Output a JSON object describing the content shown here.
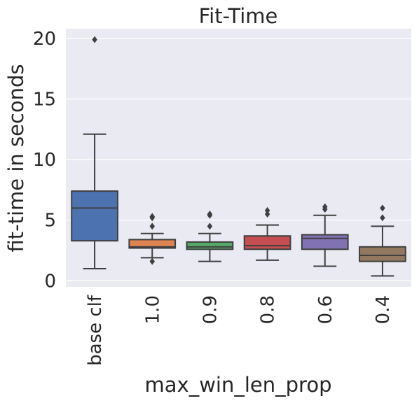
{
  "chart_data": {
    "type": "box",
    "title": "Fit-Time",
    "xlabel": "max_win_len_prop",
    "ylabel": "fit-time in seconds",
    "ylim": [
      -0.5,
      20.8
    ],
    "yticks": [
      0,
      5,
      10,
      15,
      20
    ],
    "ytick_labels": [
      "0",
      "5",
      "10",
      "15",
      "20"
    ],
    "grid": true,
    "categories": [
      "base clf",
      "1.0",
      "0.9",
      "0.8",
      "0.6",
      "0.4"
    ],
    "colors": [
      "#4c72b0",
      "#dd8452",
      "#55a868",
      "#c44e52",
      "#8172b3",
      "#937860"
    ],
    "series": [
      {
        "category": "base clf",
        "whisker_low": 1.0,
        "q1": 3.3,
        "median": 6.0,
        "q3": 7.4,
        "whisker_high": 12.1,
        "outliers": [
          19.9
        ]
      },
      {
        "category": "1.0",
        "whisker_low": 1.9,
        "q1": 2.7,
        "median": 2.8,
        "q3": 3.4,
        "whisker_high": 3.9,
        "outliers": [
          5.3,
          5.2,
          4.5,
          1.6
        ]
      },
      {
        "category": "0.9",
        "whisker_low": 1.6,
        "q1": 2.6,
        "median": 2.8,
        "q3": 3.2,
        "whisker_high": 3.9,
        "outliers": [
          5.5,
          5.4,
          4.5
        ]
      },
      {
        "category": "0.8",
        "whisker_low": 1.7,
        "q1": 2.6,
        "median": 2.9,
        "q3": 3.7,
        "whisker_high": 4.6,
        "outliers": [
          5.8,
          5.5
        ]
      },
      {
        "category": "0.6",
        "whisker_low": 1.2,
        "q1": 2.6,
        "median": 3.5,
        "q3": 3.8,
        "whisker_high": 5.4,
        "outliers": [
          6.1,
          5.9
        ]
      },
      {
        "category": "0.4",
        "whisker_low": 0.4,
        "q1": 1.6,
        "median": 2.1,
        "q3": 2.8,
        "whisker_high": 4.5,
        "outliers": [
          6.0,
          5.2
        ]
      }
    ]
  }
}
